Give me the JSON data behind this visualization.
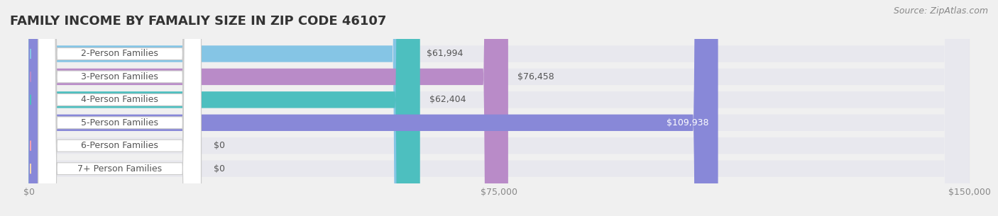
{
  "title": "FAMILY INCOME BY FAMALIY SIZE IN ZIP CODE 46107",
  "source": "Source: ZipAtlas.com",
  "categories": [
    "2-Person Families",
    "3-Person Families",
    "4-Person Families",
    "5-Person Families",
    "6-Person Families",
    "7+ Person Families"
  ],
  "values": [
    61994,
    76458,
    62404,
    109938,
    0,
    0
  ],
  "bar_colors": [
    "#85c5e5",
    "#b98bc8",
    "#4dbfbf",
    "#8888d8",
    "#f4a0b0",
    "#f5d9b0"
  ],
  "label_colors": [
    "#555555",
    "#555555",
    "#555555",
    "#ffffff",
    "#555555",
    "#555555"
  ],
  "xlim": [
    0,
    150000
  ],
  "xticks": [
    0,
    75000,
    150000
  ],
  "xtick_labels": [
    "$0",
    "$75,000",
    "$150,000"
  ],
  "background_color": "#f0f0f0",
  "bar_bg_color": "#e8e8ee",
  "title_fontsize": 13,
  "label_fontsize": 9,
  "tick_fontsize": 9,
  "source_fontsize": 9
}
